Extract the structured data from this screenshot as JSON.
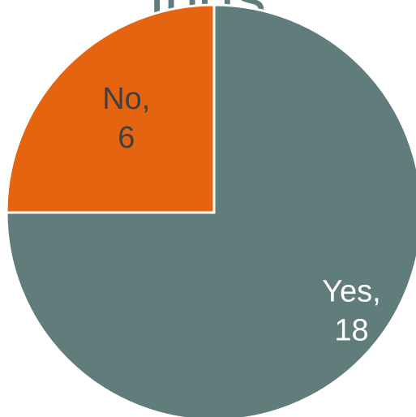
{
  "chart_data": {
    "type": "pie",
    "title": "ings",
    "slices": [
      {
        "label": "Yes",
        "value": 18,
        "color": "#607d7b",
        "label_color": "#ffffff"
      },
      {
        "label": "No",
        "value": 6,
        "color": "#e46410",
        "label_color": "#404040"
      }
    ],
    "start_angle_deg": 0,
    "direction": "clockwise",
    "slice_border_color": "#ffffff",
    "legend": "none"
  }
}
